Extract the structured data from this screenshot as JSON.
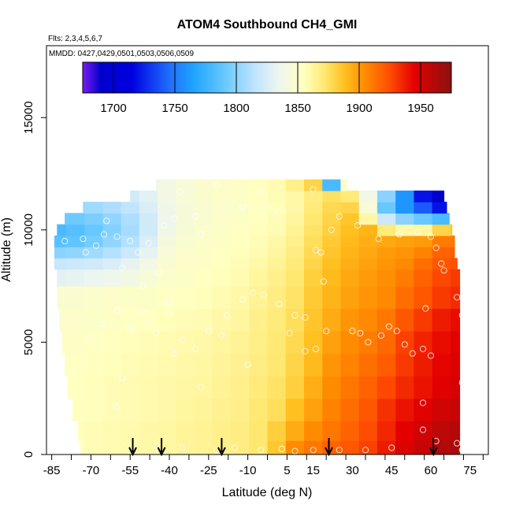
{
  "chart_data": {
    "type": "heatmap",
    "title": "ATOM4 Southbound CH4_GMI",
    "notes": [
      "Flts: 2,3,4,5,6,7",
      "MMDD: 0427,0429,0501,0503,0506,0509"
    ],
    "xlabel": "Latitude (deg N)",
    "ylabel": "Altitude (m)",
    "xlim": [
      -87,
      82
    ],
    "ylim": [
      0,
      18200
    ],
    "xtick_values": [
      -85,
      -70,
      -55,
      -40,
      -25,
      -10,
      5,
      15,
      30,
      45,
      60,
      75
    ],
    "xtick_labels": [
      "-85",
      "-70",
      "-55",
      "-40",
      "-25",
      "-10",
      "5",
      "15",
      "30",
      "45",
      "60",
      "75"
    ],
    "ytick_values": [
      0,
      5000,
      10000,
      15000
    ],
    "ytick_labels": [
      "0",
      "5000",
      "10000",
      "15000"
    ],
    "colorbar": {
      "range": [
        1675,
        1975
      ],
      "tick_values": [
        1700,
        1750,
        1800,
        1850,
        1900,
        1950
      ],
      "tick_labels": [
        "1700",
        "1750",
        "1800",
        "1850",
        "1900",
        "1950"
      ],
      "stops": [
        [
          1675,
          "#7a1cf0"
        ],
        [
          1690,
          "#0000cc"
        ],
        [
          1715,
          "#0000e0"
        ],
        [
          1745,
          "#1f6cff"
        ],
        [
          1765,
          "#1fa4ff"
        ],
        [
          1790,
          "#66c8ff"
        ],
        [
          1815,
          "#bfe4ff"
        ],
        [
          1835,
          "#eef6ee"
        ],
        [
          1855,
          "#ffffc0"
        ],
        [
          1872,
          "#ffe870"
        ],
        [
          1888,
          "#ffc020"
        ],
        [
          1905,
          "#ff8c00"
        ],
        [
          1925,
          "#ff4c00"
        ],
        [
          1945,
          "#e40000"
        ],
        [
          1975,
          "#8c1010"
        ]
      ]
    },
    "grid_x": [
      -83,
      -76,
      -69,
      -62,
      -55,
      -48,
      -41,
      -34,
      -27,
      -20,
      -13,
      -6,
      1,
      8,
      15,
      22,
      29,
      36,
      43,
      50,
      57,
      64,
      71
    ],
    "grid_y": [
      250,
      1000,
      2000,
      3000,
      4000,
      5000,
      6000,
      7000,
      8000,
      8500,
      9000,
      9500,
      10000,
      10500,
      11000,
      11500,
      12000
    ],
    "ch4_grid": [
      [
        1855,
        1856,
        1857,
        1858,
        1859,
        1860,
        1861,
        1863,
        1864,
        1866,
        1868,
        1872,
        1885,
        1905,
        1912,
        1918,
        1922,
        1928,
        1938,
        1948,
        1955,
        1962,
        1965
      ],
      [
        1855,
        1856,
        1857,
        1858,
        1859,
        1860,
        1861,
        1863,
        1864,
        1866,
        1868,
        1872,
        1882,
        1895,
        1905,
        1912,
        1918,
        1925,
        1935,
        1945,
        1952,
        1958,
        1962
      ],
      [
        1854,
        1855,
        1856,
        1857,
        1858,
        1859,
        1860,
        1862,
        1863,
        1865,
        1867,
        1871,
        1876,
        1888,
        1898,
        1908,
        1915,
        1922,
        1932,
        1940,
        1946,
        1952,
        1955
      ],
      [
        1854,
        1855,
        1856,
        1857,
        1858,
        1859,
        1860,
        1861,
        1862,
        1864,
        1866,
        1870,
        1874,
        1882,
        1894,
        1905,
        1912,
        1918,
        1926,
        1934,
        1940,
        1946,
        1950
      ],
      [
        1853,
        1854,
        1855,
        1856,
        1857,
        1858,
        1859,
        1860,
        1861,
        1863,
        1865,
        1868,
        1872,
        1880,
        1890,
        1902,
        1908,
        1914,
        1920,
        1930,
        1938,
        1944,
        1948
      ],
      [
        1852,
        1853,
        1854,
        1855,
        1856,
        1857,
        1858,
        1859,
        1860,
        1862,
        1864,
        1867,
        1871,
        1878,
        1888,
        1898,
        1905,
        1910,
        1916,
        1928,
        1936,
        1942,
        1946
      ],
      [
        1850,
        1851,
        1852,
        1853,
        1854,
        1855,
        1856,
        1857,
        1858,
        1860,
        1862,
        1866,
        1870,
        1876,
        1886,
        1895,
        1902,
        1906,
        1912,
        1922,
        1930,
        1938,
        1942
      ],
      [
        1848,
        1849,
        1850,
        1851,
        1852,
        1853,
        1854,
        1855,
        1856,
        1858,
        1860,
        1864,
        1868,
        1874,
        1884,
        1892,
        1898,
        1902,
        1906,
        1914,
        1922,
        1930,
        1934
      ],
      [
        1830,
        1832,
        1834,
        1836,
        1840,
        1845,
        1850,
        1852,
        1854,
        1856,
        1858,
        1862,
        1866,
        1872,
        1882,
        1890,
        1896,
        1900,
        1904,
        1910,
        1918,
        1926,
        1930
      ],
      [
        1818,
        1820,
        1822,
        1826,
        1832,
        1840,
        1848,
        1851,
        1853,
        1855,
        1857,
        1860,
        1864,
        1870,
        1880,
        1888,
        1894,
        1898,
        1902,
        1906,
        1914,
        1922,
        1924
      ],
      [
        1800,
        1802,
        1806,
        1812,
        1820,
        1832,
        1845,
        1850,
        1852,
        1854,
        1856,
        1858,
        1862,
        1868,
        1878,
        1886,
        1892,
        1896,
        1900,
        1902,
        1908,
        1918,
        1920
      ],
      [
        1785,
        1788,
        1794,
        1802,
        1812,
        1826,
        1842,
        1848,
        1851,
        1853,
        1855,
        1857,
        1860,
        1866,
        1876,
        1884,
        1890,
        1894,
        1896,
        1898,
        1900,
        1910,
        1912
      ],
      [
        1780,
        1784,
        1790,
        1798,
        1808,
        1822,
        1838,
        1846,
        1850,
        1852,
        1854,
        1856,
        1858,
        1864,
        1874,
        1882,
        1888,
        1892,
        1870,
        1860,
        1862,
        1880,
        1885
      ],
      [
        1790,
        1792,
        1796,
        1802,
        1810,
        1822,
        1836,
        1844,
        1848,
        1851,
        1853,
        1855,
        1857,
        1862,
        1872,
        1880,
        1886,
        1860,
        1820,
        1800,
        1790,
        1780,
        1775
      ],
      [
        1800,
        1802,
        1806,
        1810,
        1816,
        1826,
        1838,
        1844,
        1848,
        1850,
        1852,
        1854,
        1856,
        1860,
        1870,
        1878,
        1880,
        1845,
        1790,
        1760,
        1740,
        1720,
        1710
      ],
      [
        1810,
        1812,
        1815,
        1818,
        1822,
        1830,
        1840,
        1845,
        1849,
        1851,
        1853,
        1855,
        1857,
        1860,
        1868,
        1875,
        1870,
        1840,
        1800,
        1760,
        1720,
        1690,
        1680
      ],
      [
        1820,
        1822,
        1824,
        1826,
        1830,
        1834,
        1840,
        1845,
        1849,
        1851,
        1853,
        1855,
        1858,
        1866,
        1880,
        1780,
        1850,
        1850,
        1850,
        1850,
        1850,
        1850,
        1850
      ]
    ],
    "row_extents": [
      [
        -74,
        71
      ],
      [
        -75,
        71
      ],
      [
        -77,
        71
      ],
      [
        -79,
        71
      ],
      [
        -80,
        71
      ],
      [
        -81,
        71
      ],
      [
        -82,
        71
      ],
      [
        -83,
        71
      ],
      [
        -83,
        71
      ],
      [
        -84,
        70
      ],
      [
        -84,
        69
      ],
      [
        -84,
        69
      ],
      [
        -83,
        68
      ],
      [
        -80,
        67
      ],
      [
        -73,
        66
      ],
      [
        -55,
        65
      ],
      [
        -45,
        28
      ]
    ],
    "observations": [
      [
        -68,
        9300
      ],
      [
        -73,
        9600
      ],
      [
        -80,
        9500
      ],
      [
        -65,
        9800
      ],
      [
        -60,
        9700
      ],
      [
        -55,
        9500
      ],
      [
        -52,
        9000
      ],
      [
        -48,
        9400
      ],
      [
        -42,
        10200
      ],
      [
        -38,
        10500
      ],
      [
        -30,
        10600
      ],
      [
        -28,
        9800
      ],
      [
        -44,
        8100
      ],
      [
        -50,
        7500
      ],
      [
        -60,
        6400
      ],
      [
        -66,
        5800
      ],
      [
        -70,
        5200
      ],
      [
        -55,
        5600
      ],
      [
        -48,
        5900
      ],
      [
        -40,
        6300
      ],
      [
        -35,
        5100
      ],
      [
        -30,
        4700
      ],
      [
        -25,
        5500
      ],
      [
        -18,
        6200
      ],
      [
        -12,
        6900
      ],
      [
        -8,
        7200
      ],
      [
        -4,
        7100
      ],
      [
        2,
        6700
      ],
      [
        8,
        6200
      ],
      [
        12,
        6100
      ],
      [
        16,
        9100
      ],
      [
        18,
        9000
      ],
      [
        19,
        7700
      ],
      [
        20,
        5500
      ],
      [
        16,
        4700
      ],
      [
        12,
        4600
      ],
      [
        6,
        5400
      ],
      [
        25,
        10600
      ],
      [
        22,
        10000
      ],
      [
        30,
        5500
      ],
      [
        33,
        5400
      ],
      [
        36,
        5000
      ],
      [
        41,
        5300
      ],
      [
        44,
        5700
      ],
      [
        47,
        5500
      ],
      [
        50,
        4900
      ],
      [
        53,
        4500
      ],
      [
        57,
        4700
      ],
      [
        60,
        4400
      ],
      [
        58,
        6500
      ],
      [
        64,
        8500
      ],
      [
        65,
        8200
      ],
      [
        62,
        9200
      ],
      [
        60,
        9700
      ],
      [
        55,
        9900
      ],
      [
        48,
        9800
      ],
      [
        40,
        9600
      ],
      [
        32,
        10200
      ],
      [
        70,
        7000
      ],
      [
        72,
        6200
      ],
      [
        73,
        3900
      ],
      [
        72,
        3200
      ],
      [
        57,
        2300
      ],
      [
        57,
        1100
      ],
      [
        62,
        600
      ],
      [
        70,
        500
      ],
      [
        72,
        200
      ],
      [
        45,
        300
      ],
      [
        35,
        200
      ],
      [
        25,
        200
      ],
      [
        15,
        200
      ],
      [
        8,
        150
      ],
      [
        3,
        250
      ],
      [
        -5,
        200
      ],
      [
        -15,
        300
      ],
      [
        -22,
        200
      ],
      [
        -35,
        300
      ],
      [
        -45,
        400
      ],
      [
        -55,
        300
      ],
      [
        -60,
        2100
      ],
      [
        -58,
        3400
      ],
      [
        -38,
        4500
      ],
      [
        -10,
        4000
      ],
      [
        -28,
        3000
      ],
      [
        -36,
        11700
      ],
      [
        -22,
        12000
      ],
      [
        -18,
        12400
      ],
      [
        -5,
        11700
      ],
      [
        -12,
        11000
      ],
      [
        15,
        11800
      ],
      [
        0,
        10800
      ],
      [
        -64,
        10400
      ],
      [
        -72,
        9000
      ],
      [
        -58,
        8300
      ],
      [
        -50,
        6300
      ],
      [
        -40,
        6800
      ],
      [
        -20,
        5300
      ],
      [
        -45,
        5400
      ]
    ],
    "arrows_lat": [
      -54,
      -43,
      -20,
      21,
      61
    ],
    "grid": false,
    "legend": "none"
  }
}
